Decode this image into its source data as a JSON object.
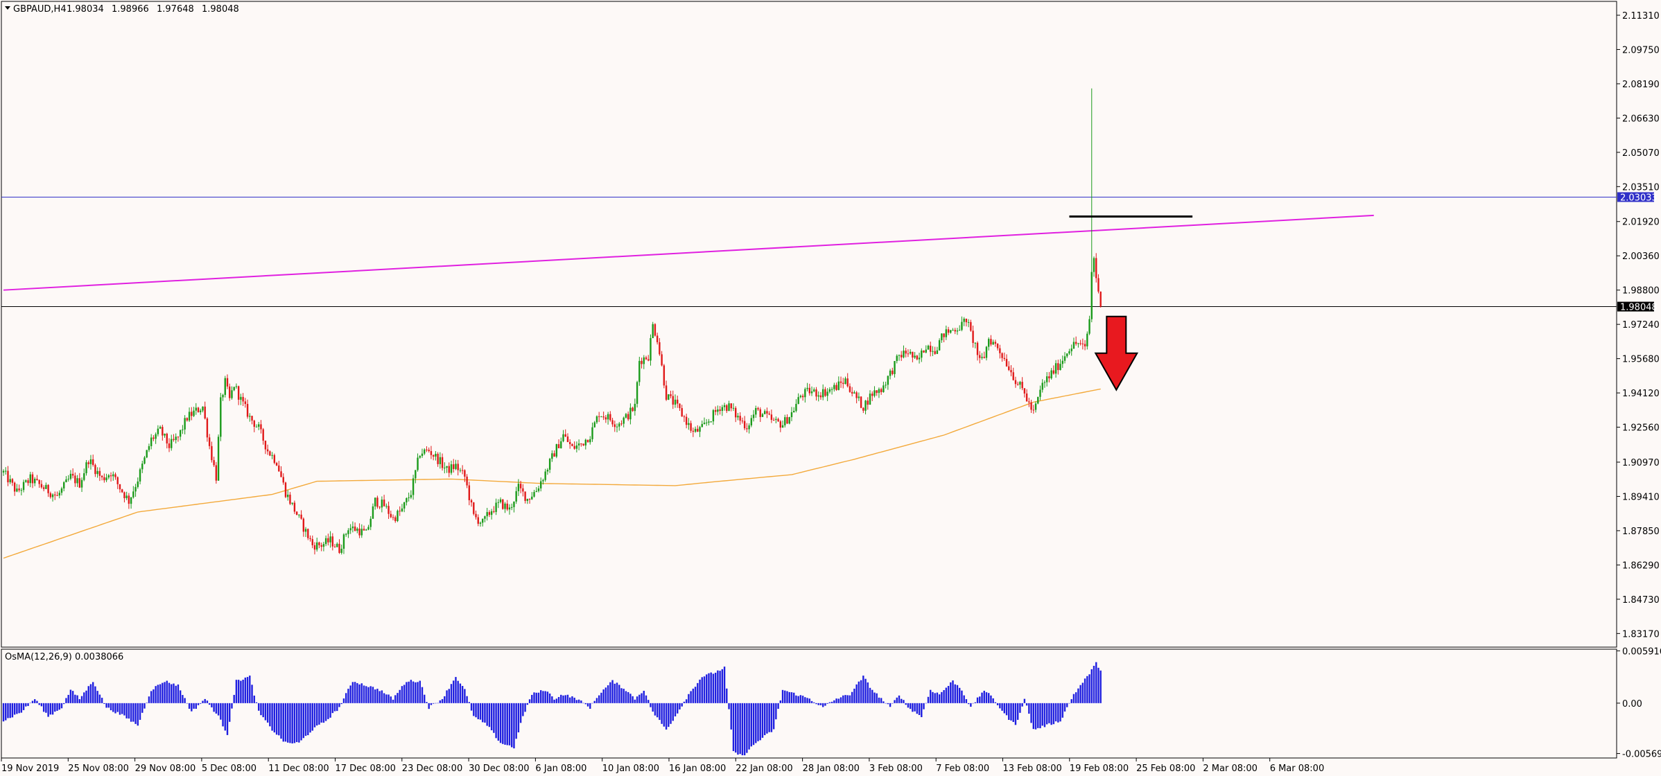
{
  "header": {
    "symbol": "GBPAUD,H4",
    "open": "1.98034",
    "high": "1.98966",
    "low": "1.97648",
    "close": "1.98048"
  },
  "osma_header": "OsMA(12,26,9) 0.0038066",
  "colors": {
    "background": "#fdf9f7",
    "bull": "#1a9a1a",
    "bear": "#e01818",
    "ma": "#f3a93a",
    "trendline": "#e020e0",
    "hline_blue": "#3030c8",
    "hline_black": "#000000",
    "osma": "#1e1ee0",
    "arrow": "#e8191f"
  },
  "chart_data": [
    {
      "type": "candlestick",
      "title": "GBPAUD,H4",
      "x_ticks": [
        "19 Nov 2019",
        "25 Nov 08:00",
        "29 Nov 08:00",
        "5 Dec 08:00",
        "11 Dec 08:00",
        "17 Dec 08:00",
        "23 Dec 08:00",
        "30 Dec 08:00",
        "6 Jan 08:00",
        "10 Jan 08:00",
        "16 Jan 08:00",
        "22 Jan 08:00",
        "28 Jan 08:00",
        "3 Feb 08:00",
        "7 Feb 08:00",
        "13 Feb 08:00",
        "19 Feb 08:00",
        "25 Feb 08:00",
        "2 Mar 08:00",
        "6 Mar 08:00"
      ],
      "y_ticks": [
        "2.11310",
        "2.09750",
        "2.08190",
        "2.06630",
        "2.05070",
        "2.03510",
        "2.01920",
        "2.00360",
        "1.98800",
        "1.97240",
        "1.95680",
        "1.94120",
        "1.92560",
        "1.90970",
        "1.89410",
        "1.87850",
        "1.86290",
        "1.84730",
        "1.83170"
      ],
      "ylim": [
        1.8255,
        2.1194
      ],
      "price_anchors": [
        [
          0,
          1.905
        ],
        [
          6,
          1.896
        ],
        [
          12,
          1.902
        ],
        [
          18,
          1.898
        ],
        [
          24,
          1.894
        ],
        [
          30,
          1.903
        ],
        [
          34,
          1.9
        ],
        [
          38,
          1.911
        ],
        [
          44,
          1.902
        ],
        [
          48,
          1.905
        ],
        [
          52,
          1.898
        ],
        [
          56,
          1.892
        ],
        [
          60,
          1.902
        ],
        [
          66,
          1.92
        ],
        [
          70,
          1.924
        ],
        [
          74,
          1.917
        ],
        [
          78,
          1.921
        ],
        [
          82,
          1.93
        ],
        [
          86,
          1.933
        ],
        [
          89,
          1.935
        ],
        [
          92,
          1.917
        ],
        [
          95,
          1.903
        ],
        [
          97,
          1.937
        ],
        [
          99,
          1.946
        ],
        [
          101,
          1.938
        ],
        [
          103,
          1.945
        ],
        [
          106,
          1.938
        ],
        [
          110,
          1.93
        ],
        [
          114,
          1.925
        ],
        [
          118,
          1.915
        ],
        [
          122,
          1.91
        ],
        [
          126,
          1.896
        ],
        [
          130,
          1.888
        ],
        [
          134,
          1.88
        ],
        [
          138,
          1.872
        ],
        [
          142,
          1.872
        ],
        [
          146,
          1.874
        ],
        [
          150,
          1.87
        ],
        [
          154,
          1.88
        ],
        [
          158,
          1.879
        ],
        [
          162,
          1.877
        ],
        [
          166,
          1.892
        ],
        [
          170,
          1.89
        ],
        [
          174,
          1.884
        ],
        [
          178,
          1.888
        ],
        [
          182,
          1.896
        ],
        [
          186,
          1.914
        ],
        [
          190,
          1.915
        ],
        [
          194,
          1.911
        ],
        [
          198,
          1.906
        ],
        [
          202,
          1.908
        ],
        [
          206,
          1.903
        ],
        [
          210,
          1.885
        ],
        [
          214,
          1.882
        ],
        [
          218,
          1.888
        ],
        [
          222,
          1.891
        ],
        [
          226,
          1.888
        ],
        [
          230,
          1.898
        ],
        [
          234,
          1.893
        ],
        [
          238,
          1.897
        ],
        [
          242,
          1.905
        ],
        [
          246,
          1.914
        ],
        [
          250,
          1.922
        ],
        [
          254,
          1.916
        ],
        [
          258,
          1.918
        ],
        [
          262,
          1.922
        ],
        [
          266,
          1.932
        ],
        [
          270,
          1.93
        ],
        [
          274,
          1.927
        ],
        [
          278,
          1.93
        ],
        [
          282,
          1.935
        ],
        [
          284,
          1.956
        ],
        [
          288,
          1.958
        ],
        [
          290,
          1.972
        ],
        [
          292,
          1.966
        ],
        [
          294,
          1.953
        ],
        [
          296,
          1.94
        ],
        [
          300,
          1.936
        ],
        [
          304,
          1.93
        ],
        [
          308,
          1.923
        ],
        [
          312,
          1.925
        ],
        [
          316,
          1.93
        ],
        [
          320,
          1.935
        ],
        [
          324,
          1.935
        ],
        [
          328,
          1.93
        ],
        [
          332,
          1.926
        ],
        [
          336,
          1.933
        ],
        [
          340,
          1.931
        ],
        [
          344,
          1.928
        ],
        [
          348,
          1.927
        ],
        [
          352,
          1.932
        ],
        [
          356,
          1.94
        ],
        [
          360,
          1.942
        ],
        [
          364,
          1.941
        ],
        [
          368,
          1.942
        ],
        [
          372,
          1.944
        ],
        [
          376,
          1.947
        ],
        [
          380,
          1.94
        ],
        [
          384,
          1.935
        ],
        [
          388,
          1.941
        ],
        [
          392,
          1.943
        ],
        [
          396,
          1.95
        ],
        [
          400,
          1.958
        ],
        [
          404,
          1.96
        ],
        [
          408,
          1.955
        ],
        [
          412,
          1.963
        ],
        [
          416,
          1.961
        ],
        [
          420,
          1.968
        ],
        [
          424,
          1.97
        ],
        [
          428,
          1.972
        ],
        [
          430,
          1.975
        ],
        [
          432,
          1.968
        ],
        [
          434,
          1.963
        ],
        [
          436,
          1.955
        ],
        [
          438,
          1.958
        ],
        [
          440,
          1.966
        ],
        [
          444,
          1.962
        ],
        [
          448,
          1.955
        ],
        [
          452,
          1.947
        ],
        [
          456,
          1.941
        ],
        [
          458,
          1.936
        ],
        [
          460,
          1.932
        ],
        [
          464,
          1.945
        ],
        [
          468,
          1.95
        ],
        [
          472,
          1.955
        ],
        [
          476,
          1.962
        ],
        [
          480,
          1.964
        ],
        [
          483,
          1.961
        ],
        [
          485,
          1.975
        ],
        [
          486,
          1.996
        ],
        [
          487,
          2.003
        ],
        [
          488,
          1.994
        ],
        [
          489,
          1.986
        ],
        [
          490,
          1.9805
        ]
      ],
      "spike": {
        "high": 2.0798
      },
      "moving_average": {
        "points": [
          [
            0,
            1.866
          ],
          [
            60,
            1.887
          ],
          [
            120,
            1.895
          ],
          [
            140,
            1.901
          ],
          [
            200,
            1.902
          ],
          [
            240,
            1.9
          ],
          [
            300,
            1.899
          ],
          [
            320,
            1.901
          ],
          [
            352,
            1.904
          ],
          [
            380,
            1.911
          ],
          [
            420,
            1.922
          ],
          [
            460,
            1.937
          ],
          [
            490,
            1.943
          ]
        ]
      },
      "trendline": {
        "start": [
          0,
          1.988
        ],
        "end": [
          612,
          2.022
        ]
      },
      "hlines": [
        {
          "price": 2.03033,
          "label": "2.03033",
          "color": "#3030c8"
        },
        {
          "price": 1.98048,
          "label": "1.98048",
          "color": "#000000"
        }
      ],
      "resistance_segment": {
        "price": 2.0215,
        "from": 476,
        "to": 531
      },
      "down_arrow": {
        "from": 1.976,
        "to": 1.9426,
        "at": 497
      }
    },
    {
      "type": "bar",
      "title": "OsMA(12,26,9) 0.0038066",
      "y_ticks": [
        "0.0059165",
        "0.00",
        "-0.0056959"
      ],
      "ylim": [
        -0.0062,
        0.0061
      ],
      "anchors": [
        [
          0,
          -0.002
        ],
        [
          8,
          -0.001
        ],
        [
          14,
          0.0005
        ],
        [
          20,
          -0.0015
        ],
        [
          26,
          -0.0005
        ],
        [
          30,
          0.0015
        ],
        [
          34,
          0.0005
        ],
        [
          40,
          0.0025
        ],
        [
          46,
          -0.0005
        ],
        [
          54,
          -0.0015
        ],
        [
          60,
          -0.0025
        ],
        [
          66,
          0.0015
        ],
        [
          72,
          0.0025
        ],
        [
          78,
          0.002
        ],
        [
          84,
          -0.001
        ],
        [
          90,
          0.0005
        ],
        [
          96,
          -0.0015
        ],
        [
          100,
          -0.0035
        ],
        [
          104,
          0.0025
        ],
        [
          110,
          0.003
        ],
        [
          114,
          -0.001
        ],
        [
          120,
          -0.003
        ],
        [
          126,
          -0.0045
        ],
        [
          132,
          -0.0045
        ],
        [
          138,
          -0.003
        ],
        [
          144,
          -0.002
        ],
        [
          150,
          -0.0005
        ],
        [
          156,
          0.0025
        ],
        [
          162,
          0.002
        ],
        [
          168,
          0.0015
        ],
        [
          174,
          0.0005
        ],
        [
          180,
          0.0025
        ],
        [
          186,
          0.0025
        ],
        [
          190,
          -0.0005
        ],
        [
          196,
          0.0005
        ],
        [
          202,
          0.003
        ],
        [
          206,
          0.0015
        ],
        [
          210,
          -0.0015
        ],
        [
          216,
          -0.0025
        ],
        [
          222,
          -0.0045
        ],
        [
          228,
          -0.005
        ],
        [
          232,
          -0.0015
        ],
        [
          236,
          0.001
        ],
        [
          242,
          0.0015
        ],
        [
          246,
          0.0005
        ],
        [
          250,
          0.001
        ],
        [
          256,
          0.0005
        ],
        [
          262,
          -0.0005
        ],
        [
          266,
          0.001
        ],
        [
          272,
          0.0025
        ],
        [
          278,
          0.0015
        ],
        [
          282,
          0.0005
        ],
        [
          286,
          0.0015
        ],
        [
          290,
          -0.001
        ],
        [
          296,
          -0.003
        ],
        [
          300,
          -0.0015
        ],
        [
          306,
          0.001
        ],
        [
          312,
          0.003
        ],
        [
          318,
          0.0035
        ],
        [
          322,
          0.004
        ],
        [
          326,
          -0.0055
        ],
        [
          330,
          -0.006
        ],
        [
          336,
          -0.0045
        ],
        [
          344,
          -0.003
        ],
        [
          348,
          0.0015
        ],
        [
          354,
          0.001
        ],
        [
          360,
          0.0005
        ],
        [
          366,
          -0.0005
        ],
        [
          372,
          0.0005
        ],
        [
          378,
          0.001
        ],
        [
          384,
          0.003
        ],
        [
          388,
          0.0015
        ],
        [
          392,
          0.0005
        ],
        [
          396,
          -0.0005
        ],
        [
          400,
          0.001
        ],
        [
          404,
          -0.0005
        ],
        [
          410,
          -0.0015
        ],
        [
          414,
          0.0015
        ],
        [
          418,
          0.001
        ],
        [
          424,
          0.0025
        ],
        [
          428,
          0.0015
        ],
        [
          432,
          -0.0005
        ],
        [
          438,
          0.0015
        ],
        [
          442,
          0.0005
        ],
        [
          448,
          -0.0015
        ],
        [
          452,
          -0.0025
        ],
        [
          456,
          0.0005
        ],
        [
          460,
          -0.003
        ],
        [
          466,
          -0.0025
        ],
        [
          472,
          -0.002
        ],
        [
          478,
          0.001
        ],
        [
          484,
          0.003
        ],
        [
          488,
          0.0045
        ],
        [
          490,
          0.0038
        ]
      ]
    }
  ]
}
